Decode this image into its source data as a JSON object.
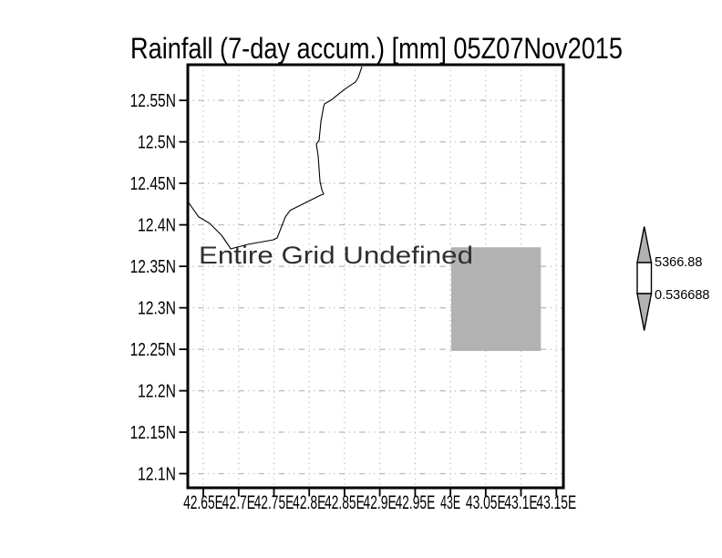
{
  "colors": {
    "background": "#ffffff",
    "frame": "#000000",
    "grid": "#b9b9b9",
    "shade": "#b2b2b2",
    "coastline": "#000000",
    "annotation": "#2f2f2f",
    "text": "#000000"
  },
  "chart_data": {
    "type": "map",
    "title": "Rainfall (7-day accum.) [mm] 05Z07Nov2015",
    "annotation": "Entire Grid Undefined",
    "grid_style": "dotted",
    "x_axis": {
      "tick_labels": [
        "42.65E",
        "42.7E",
        "42.75E",
        "42.8E",
        "42.85E",
        "42.9E",
        "42.95E",
        "43E",
        "43.05E",
        "43.1E",
        "43.15E"
      ],
      "tick_lons": [
        42.65,
        42.7,
        42.75,
        42.8,
        42.85,
        42.9,
        42.95,
        43.0,
        43.05,
        43.1,
        43.15
      ],
      "range_lon": [
        42.628,
        43.16
      ]
    },
    "y_axis": {
      "tick_labels": [
        "12.55N",
        "12.5N",
        "12.45N",
        "12.4N",
        "12.35N",
        "12.3N",
        "12.25N",
        "12.2N",
        "12.15N",
        "12.1N"
      ],
      "tick_lats": [
        12.55,
        12.5,
        12.45,
        12.4,
        12.35,
        12.3,
        12.25,
        12.2,
        12.15,
        12.1
      ],
      "range_lat": [
        12.083,
        12.593
      ]
    },
    "coastline_lonlat": [
      [
        42.628,
        12.428
      ],
      [
        42.6435,
        12.4095
      ],
      [
        42.659,
        12.4018
      ],
      [
        42.6758,
        12.3875
      ],
      [
        42.6874,
        12.3732
      ],
      [
        42.6887,
        12.371
      ],
      [
        42.7132,
        12.3765
      ],
      [
        42.7494,
        12.382
      ],
      [
        42.7546,
        12.3842
      ],
      [
        42.7662,
        12.4095
      ],
      [
        42.7727,
        12.4172
      ],
      [
        42.7778,
        12.4194
      ],
      [
        42.8166,
        12.4359
      ],
      [
        42.8204,
        12.437
      ],
      [
        42.8178,
        12.4425
      ],
      [
        42.8152,
        12.4524
      ],
      [
        42.8127,
        12.4832
      ],
      [
        42.8101,
        12.4975
      ],
      [
        42.814,
        12.5019
      ],
      [
        42.8166,
        12.525
      ],
      [
        42.8204,
        12.5425
      ],
      [
        42.8217,
        12.5458
      ],
      [
        42.8307,
        12.5502
      ],
      [
        42.8501,
        12.5634
      ],
      [
        42.8656,
        12.5722
      ],
      [
        42.8695,
        12.5777
      ],
      [
        42.8747,
        12.5909
      ]
    ],
    "shaded_region": {
      "lon_min": 43.001,
      "lon_max": 43.128,
      "lat_min": 12.248,
      "lat_max": 12.373,
      "color_name": "gray"
    },
    "colorbar": {
      "upper_label": "5366.88",
      "lower_label": "0.536688"
    }
  }
}
